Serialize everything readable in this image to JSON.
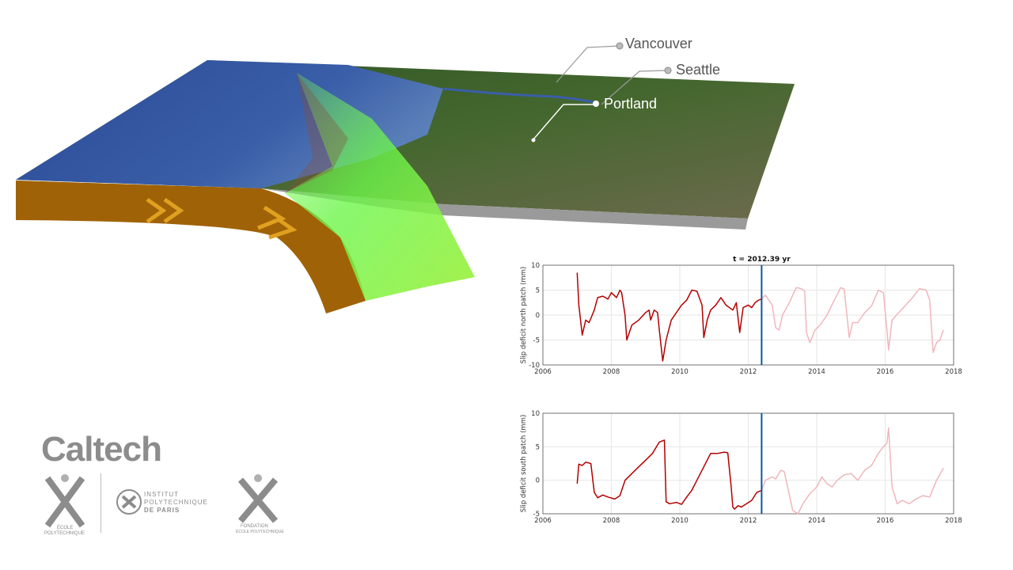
{
  "map": {
    "cities": [
      "Vancouver",
      "Seattle",
      "Portland"
    ]
  },
  "logos": {
    "caltech": "Caltech",
    "ecole_line1": "ÉCOLE",
    "ecole_line2": "POLYTECHNIQUE",
    "ipp_line1": "INSTITUT",
    "ipp_line2": "POLYTECHNIQUE",
    "ipp_line3": "DE PARIS",
    "fondation_line1": "FONDATION",
    "fondation_line2": "ÉCOLE POLYTECHNIQUE"
  },
  "colors": {
    "past_curve": "#b40000",
    "future_curve": "#f0b6bc",
    "time_marker": "#0b5a9e",
    "slab": "#a06206",
    "ocean": "#2e4d95",
    "land": "#3d5f2a"
  },
  "chart_data": [
    {
      "type": "line",
      "title": "t = 2012.39 yr",
      "xlabel": "",
      "ylabel": "Slip deficit north patch (mm)",
      "xlim": [
        2006,
        2018
      ],
      "ylim": [
        -10,
        10
      ],
      "xticks": [
        2006,
        2008,
        2010,
        2012,
        2014,
        2016,
        2018
      ],
      "yticks": [
        -10,
        -5,
        0,
        5,
        10
      ],
      "grid": true,
      "current_time": 2012.39,
      "series": [
        {
          "x": [
            2007.0,
            2007.05,
            2007.15,
            2007.25,
            2007.35,
            2007.5,
            2007.6,
            2007.75,
            2007.9,
            2008.0,
            2008.15,
            2008.25,
            2008.3,
            2008.4,
            2008.45,
            2008.6,
            2008.8,
            2009.0,
            2009.1,
            2009.15,
            2009.25,
            2009.35,
            2009.4,
            2009.5,
            2009.6,
            2009.75,
            2009.9,
            2010.05,
            2010.2,
            2010.35,
            2010.5,
            2010.65,
            2010.7,
            2010.8,
            2010.9,
            2011.05,
            2011.2,
            2011.35,
            2011.55,
            2011.65,
            2011.75,
            2011.85,
            2012.0,
            2012.1,
            2012.2,
            2012.3,
            2012.39
          ],
          "y": [
            8.5,
            2,
            -4,
            -1,
            -1.5,
            1,
            3.5,
            3.8,
            3.2,
            4.5,
            3.5,
            5,
            4.5,
            0,
            -5,
            -2,
            -1,
            0.5,
            1,
            -1,
            1,
            0.5,
            -3,
            -9.2,
            -5,
            -1,
            0.5,
            2,
            3,
            5,
            4.8,
            2,
            -4.5,
            -1,
            1,
            2,
            3.5,
            2,
            1,
            2.5,
            -3.5,
            1.5,
            2,
            1.5,
            2.5,
            3,
            3.2
          ]
        },
        {
          "x": [
            2012.39,
            2012.5,
            2012.7,
            2012.8,
            2012.9,
            2013.0,
            2013.2,
            2013.4,
            2013.55,
            2013.65,
            2013.7,
            2013.8,
            2013.95,
            2014.1,
            2014.3,
            2014.5,
            2014.7,
            2014.8,
            2014.85,
            2014.95,
            2015.05,
            2015.2,
            2015.4,
            2015.6,
            2015.8,
            2015.95,
            2016.05,
            2016.1,
            2016.2,
            2016.4,
            2016.6,
            2016.8,
            2017.0,
            2017.2,
            2017.3,
            2017.4,
            2017.5,
            2017.6,
            2017.7
          ],
          "y": [
            3.2,
            4,
            2,
            -2.5,
            -3,
            0,
            2.5,
            5.5,
            5.3,
            4.8,
            -3.5,
            -5.5,
            -3,
            -2,
            0,
            2.8,
            5.5,
            5.2,
            2,
            -4.5,
            -1.5,
            -1.5,
            0.5,
            1.8,
            5,
            4.5,
            -3,
            -7,
            -1,
            0.5,
            2,
            3.5,
            5.3,
            5,
            3,
            -7.5,
            -5.5,
            -5,
            -3
          ]
        }
      ]
    },
    {
      "type": "line",
      "title": "",
      "xlabel": "",
      "ylabel": "Slip deficit south patch (mm)",
      "xlim": [
        2006,
        2018
      ],
      "ylim": [
        -5,
        10
      ],
      "xticks": [
        2006,
        2008,
        2010,
        2012,
        2014,
        2016,
        2018
      ],
      "yticks": [
        -5,
        0,
        5,
        10
      ],
      "grid": true,
      "current_time": 2012.39,
      "series": [
        {
          "x": [
            2007.0,
            2007.05,
            2007.15,
            2007.25,
            2007.4,
            2007.5,
            2007.6,
            2007.75,
            2007.9,
            2008.1,
            2008.25,
            2008.4,
            2008.6,
            2008.8,
            2009.0,
            2009.2,
            2009.4,
            2009.55,
            2009.6,
            2009.7,
            2009.9,
            2010.05,
            2010.2,
            2010.35,
            2010.5,
            2010.7,
            2010.9,
            2011.1,
            2011.3,
            2011.4,
            2011.5,
            2011.55,
            2011.6,
            2011.7,
            2011.8,
            2011.95,
            2012.1,
            2012.25,
            2012.39
          ],
          "y": [
            -0.5,
            2.4,
            2.2,
            2.7,
            2.5,
            -1.8,
            -2.6,
            -2.2,
            -2.5,
            -2.8,
            -2.3,
            0,
            1,
            2,
            3,
            4,
            5.7,
            6,
            -3.2,
            -3.5,
            -3.3,
            -3.6,
            -2.5,
            -1.5,
            0,
            2,
            4,
            4,
            4.2,
            4.1,
            -1,
            -4,
            -4.3,
            -3.8,
            -4,
            -3.5,
            -3,
            -1.8,
            -1.5
          ]
        },
        {
          "x": [
            2012.39,
            2012.5,
            2012.7,
            2012.8,
            2012.95,
            2013.05,
            2013.15,
            2013.3,
            2013.45,
            2013.6,
            2013.8,
            2014.0,
            2014.15,
            2014.3,
            2014.45,
            2014.6,
            2014.8,
            2015.0,
            2015.2,
            2015.4,
            2015.6,
            2015.8,
            2015.95,
            2016.05,
            2016.1,
            2016.2,
            2016.35,
            2016.5,
            2016.7,
            2016.9,
            2017.1,
            2017.3,
            2017.5,
            2017.7
          ],
          "y": [
            -1.5,
            0,
            0.5,
            0.2,
            1.5,
            1.3,
            -1,
            -4.5,
            -5,
            -3.5,
            -2,
            -1,
            0.5,
            -0.5,
            -1,
            0,
            0.8,
            1,
            0,
            1.5,
            2.2,
            4,
            5,
            5.5,
            7.8,
            -1,
            -3.5,
            -3,
            -3.5,
            -2.8,
            -2.3,
            -2.5,
            0,
            1.8
          ]
        }
      ]
    }
  ]
}
